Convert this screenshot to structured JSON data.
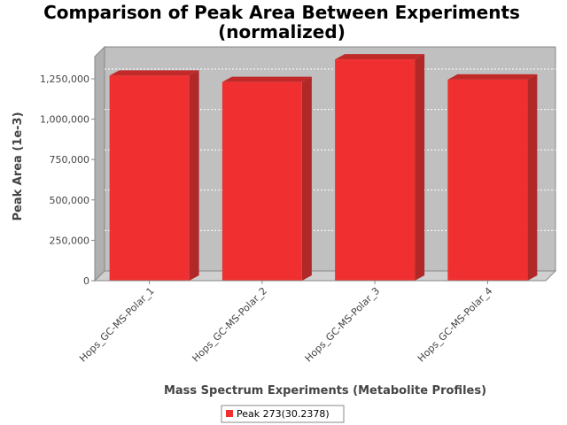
{
  "chart_data": {
    "type": "bar",
    "title": "Comparison of Peak Area Between Experiments",
    "subtitle": "(normalized)",
    "xlabel": "Mass Spectrum Experiments (Metabolite Profiles)",
    "ylabel": "Peak Area (1e-3)",
    "categories": [
      "Hops_GC-MS-Polar_1",
      "Hops_GC-MS-Polar_2",
      "Hops_GC-MS-Polar_3",
      "Hops_GC-MS-Polar_4"
    ],
    "series": [
      {
        "name": "Peak 273(30.2378)",
        "values": [
          1270000,
          1230000,
          1370000,
          1245000
        ]
      }
    ],
    "ylim": [
      0,
      1387000
    ],
    "yticks": [
      0,
      250000,
      500000,
      750000,
      1000000,
      1250000
    ],
    "ytick_labels": [
      "0",
      "250,000",
      "500,000",
      "750,000",
      "1,000,000",
      "1,250,000"
    ],
    "grid": true,
    "legend_position": "bottom",
    "colors": {
      "bar_front": "#f03030",
      "bar_top": "#c22a2a",
      "bar_side": "#b02828",
      "plot_bg": "#c0c0c0",
      "floor": "#d0d0d0",
      "axis": "#888888"
    }
  }
}
